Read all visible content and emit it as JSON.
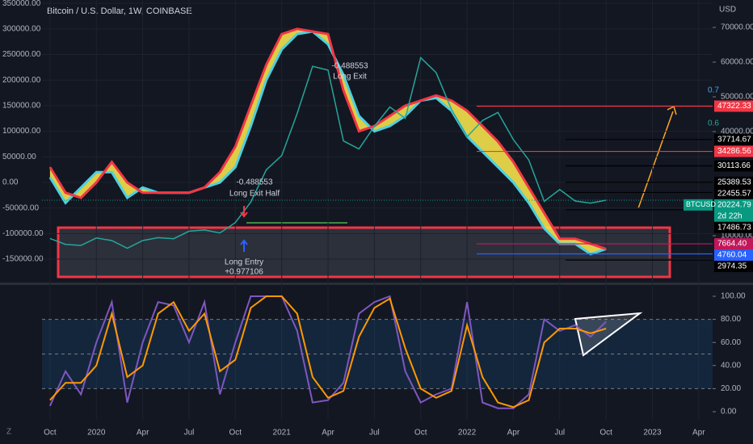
{
  "chart_data": [
    {
      "type": "line",
      "title": "Bitcoin / U.S. Dollar, 1W, COINBASE",
      "y2_label": "USD",
      "xlim": [
        -0.52,
        42.9
      ],
      "xticks": [
        {
          "value": 0,
          "label": "Oct"
        },
        {
          "value": 3,
          "label": "2020"
        },
        {
          "value": 6,
          "label": "Apr"
        },
        {
          "value": 9,
          "label": "Jul"
        },
        {
          "value": 12,
          "label": "Oct"
        },
        {
          "value": 15,
          "label": "2021"
        },
        {
          "value": 18,
          "label": "Apr"
        },
        {
          "value": 21,
          "label": "Jul"
        },
        {
          "value": 24,
          "label": "Oct"
        },
        {
          "value": 27,
          "label": "2022"
        },
        {
          "value": 30,
          "label": "Apr"
        },
        {
          "value": 33,
          "label": "Jul"
        },
        {
          "value": 36,
          "label": "Oct"
        },
        {
          "value": 39,
          "label": "2023"
        },
        {
          "value": 42,
          "label": "Apr"
        }
      ],
      "ylim": [
        -172000,
        356500
      ],
      "yticks": [
        {
          "value": 350000,
          "label": "350000.00"
        },
        {
          "value": 300000,
          "label": "300000.00"
        },
        {
          "value": 250000,
          "label": "250000.00"
        },
        {
          "value": 200000,
          "label": "200000.00"
        },
        {
          "value": 150000,
          "label": "150000.00"
        },
        {
          "value": 100000,
          "label": "100000.00"
        },
        {
          "value": 50000,
          "label": "50000.00"
        },
        {
          "value": 0,
          "label": "0.00"
        },
        {
          "value": -50000,
          "label": "-50000.00"
        },
        {
          "value": -100000,
          "label": "-100000.00"
        },
        {
          "value": -150000,
          "label": "-150000.00"
        }
      ],
      "y2lim": [
        0,
        77900
      ],
      "y2ticks": [
        {
          "value": 70000,
          "label": "70000.00"
        },
        {
          "value": 60000,
          "label": "60000.00"
        },
        {
          "value": 50000,
          "label": "50000.00"
        },
        {
          "value": 40000,
          "label": "40000.00"
        },
        {
          "value": 10000,
          "label": "10000.00"
        }
      ],
      "x": [
        0,
        1,
        2,
        3,
        4,
        5,
        6,
        7,
        8,
        9,
        10,
        11,
        12,
        13,
        14,
        15,
        16,
        17,
        18,
        19,
        20,
        21,
        22,
        23,
        24,
        25,
        26,
        27,
        28,
        29,
        30,
        31,
        32,
        33,
        34,
        35,
        36
      ],
      "series": [
        {
          "color": "#26a69a",
          "axis": "y2",
          "values": [
            9200,
            7500,
            7200,
            9350,
            8600,
            6400,
            8600,
            9450,
            9150,
            11300,
            11650,
            10800,
            13800,
            19700,
            29000,
            33100,
            45200,
            58800,
            57700,
            37300,
            35000,
            41500,
            47100,
            43800,
            61300,
            57000,
            46300,
            38500,
            43200,
            45500,
            37700,
            31800,
            19900,
            23300,
            20000,
            19400,
            20224.79
          ]
        },
        {
          "color": "#f23645",
          "values": [
            30000,
            -20000,
            -30000,
            0,
            40000,
            0,
            -20000,
            -20000,
            -20000,
            -20000,
            -10000,
            20000,
            70000,
            150000,
            230000,
            290000,
            300000,
            295000,
            290000,
            180000,
            100000,
            110000,
            130000,
            150000,
            160000,
            170000,
            160000,
            140000,
            110000,
            80000,
            40000,
            -10000,
            -60000,
            -110000,
            -110000,
            -120000,
            -130000
          ]
        },
        {
          "color": "#4dd0e1",
          "values": [
            10000,
            -40000,
            -10000,
            20000,
            20000,
            -30000,
            -10000,
            -20000,
            -20000,
            -20000,
            -10000,
            0,
            30000,
            110000,
            200000,
            260000,
            290000,
            295000,
            270000,
            210000,
            130000,
            100000,
            110000,
            130000,
            160000,
            165000,
            140000,
            90000,
            60000,
            30000,
            0,
            -40000,
            -90000,
            -120000,
            -120000,
            -140000,
            -130000
          ]
        }
      ],
      "cloud_color": "#f5e14a",
      "levels": [
        {
          "value": 47322.33,
          "color": "#f23645"
        },
        {
          "value": 37714.67,
          "color": "#000000"
        },
        {
          "value": 34286.56,
          "color": "#f23645"
        },
        {
          "value": 30113.66,
          "color": "#000000"
        },
        {
          "value": 25389.53,
          "color": "#000000"
        },
        {
          "value": 22455.57,
          "color": "#000000"
        },
        {
          "value": 17486.73,
          "color": "#000000"
        },
        {
          "value": 7664.4,
          "label": "7664.40",
          "color": "#c2185b"
        },
        {
          "value": 4760.04,
          "color": "#2962ff"
        },
        {
          "value": 2974.35,
          "color": "#000000"
        }
      ],
      "current": {
        "name": "BTCUSD",
        "value": 20224.79,
        "countdown": "2d 22h",
        "color": "#089981"
      },
      "annotations": [
        "-0.488553",
        "Long Exit Half",
        "-0.488553",
        "Long Exit",
        "Long Entry",
        "+0.977106"
      ],
      "fib_labels": [
        "0.7",
        "0.6"
      ]
    },
    {
      "type": "line",
      "ylim": [
        -7,
        108.4
      ],
      "yticks": [
        {
          "value": 100,
          "label": "100.00"
        },
        {
          "value": 80,
          "label": "80.00"
        },
        {
          "value": 60,
          "label": "60.00"
        },
        {
          "value": 40,
          "label": "40.00"
        },
        {
          "value": 20,
          "label": "20.00"
        },
        {
          "value": 0,
          "label": "0.00"
        }
      ],
      "bands": [
        20,
        50,
        80
      ],
      "x": [
        0,
        1,
        2,
        3,
        4,
        5,
        6,
        7,
        8,
        9,
        10,
        11,
        12,
        13,
        14,
        15,
        16,
        17,
        18,
        19,
        20,
        21,
        22,
        23,
        24,
        25,
        26,
        27,
        28,
        29,
        30,
        31,
        32,
        33,
        34,
        35,
        36
      ],
      "series": [
        {
          "color": "#7e57c2",
          "values": [
            5,
            35,
            15,
            60,
            95,
            8,
            60,
            95,
            92,
            60,
            95,
            15,
            60,
            100,
            100,
            100,
            70,
            8,
            10,
            25,
            85,
            95,
            100,
            35,
            8,
            15,
            20,
            95,
            8,
            3,
            3,
            15,
            80,
            70,
            75,
            65,
            78
          ]
        },
        {
          "color": "#ff9800",
          "values": [
            10,
            25,
            25,
            40,
            85,
            30,
            40,
            85,
            95,
            70,
            85,
            35,
            45,
            90,
            100,
            100,
            85,
            30,
            12,
            18,
            65,
            90,
            98,
            55,
            20,
            12,
            18,
            75,
            30,
            8,
            4,
            10,
            60,
            72,
            72,
            68,
            72
          ]
        }
      ]
    }
  ]
}
